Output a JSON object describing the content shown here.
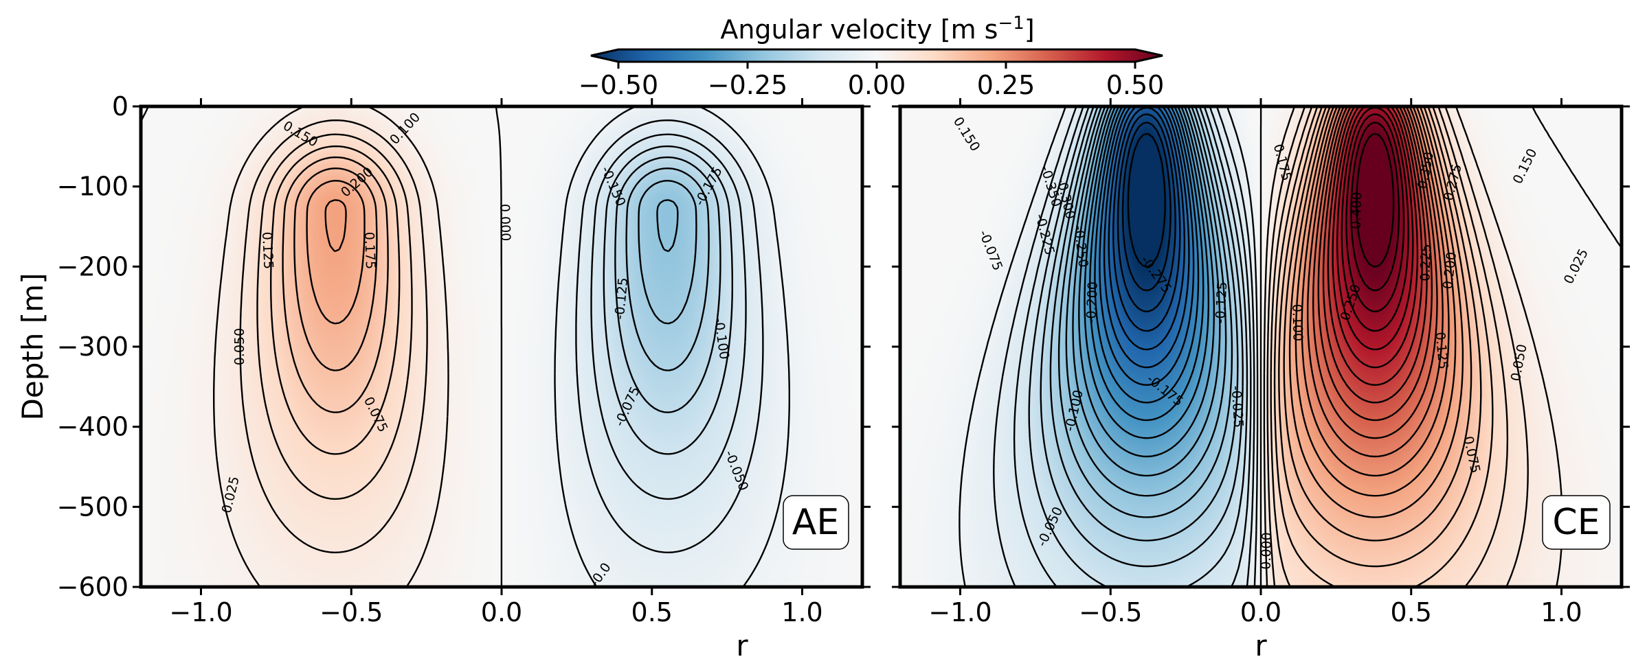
{
  "colorbar": {
    "label_main": "Angular velocity [m s",
    "label_sup": "−1",
    "label_end": "]",
    "vmin": -0.5,
    "vmax": 0.5,
    "ticks": [
      "−0.50",
      "−0.25",
      "0.00",
      "0.25",
      "0.50"
    ],
    "tick_values": [
      -0.5,
      -0.25,
      0,
      0.25,
      0.5
    ],
    "colormap": [
      "#053061",
      "#2166ac",
      "#4393c3",
      "#92c5de",
      "#d1e5f0",
      "#f7f7f7",
      "#fddbc7",
      "#f4a582",
      "#d6604d",
      "#b2182b",
      "#67001f"
    ]
  },
  "chart_data": [
    {
      "type": "heatmap",
      "panel": "AE",
      "tag": "AE",
      "xlabel": "r",
      "ylabel": "Depth [m]",
      "xlim": [
        -1.2,
        1.2
      ],
      "ylim": [
        -600,
        0
      ],
      "xticks": [
        "−1.0",
        "−0.5",
        "0.0",
        "0.5",
        "1.0"
      ],
      "xtick_values": [
        -1.0,
        -0.5,
        0.0,
        0.5,
        1.0
      ],
      "yticks": [
        "0",
        "−100",
        "−200",
        "−300",
        "−400",
        "−500",
        "−600"
      ],
      "ytick_values": [
        0,
        -100,
        -200,
        -300,
        -400,
        -500,
        -600
      ],
      "field": {
        "amplitude": 0.2,
        "center_r": 0.55,
        "center_depth": -130,
        "sign": "positive at r<0, negative at r>0"
      },
      "contour_labels": [
        {
          "text": "0.150",
          "r": -0.67,
          "depth": -35
        },
        {
          "text": "0.100",
          "r": -0.32,
          "depth": -28
        },
        {
          "text": "0.200",
          "r": -0.48,
          "depth": -95
        },
        {
          "text": "0.125",
          "r": -0.78,
          "depth": -180
        },
        {
          "text": "0.175",
          "r": -0.44,
          "depth": -180
        },
        {
          "text": "0.050",
          "r": -0.87,
          "depth": -300
        },
        {
          "text": "0.075",
          "r": -0.42,
          "depth": -385
        },
        {
          "text": "0.025",
          "r": -0.9,
          "depth": -485
        },
        {
          "text": "0.000",
          "r": 0.01,
          "depth": -145
        },
        {
          "text": "-0.150",
          "r": 0.37,
          "depth": -100
        },
        {
          "text": "-0.175",
          "r": 0.69,
          "depth": -100
        },
        {
          "text": "-0.125",
          "r": 0.4,
          "depth": -240
        },
        {
          "text": "-0.100",
          "r": 0.73,
          "depth": -290
        },
        {
          "text": "-0.075",
          "r": 0.42,
          "depth": -375
        },
        {
          "text": "-0.050",
          "r": 0.78,
          "depth": -455
        },
        {
          "text": "-0.0",
          "r": 0.33,
          "depth": -585
        }
      ]
    },
    {
      "type": "heatmap",
      "panel": "CE",
      "tag": "CE",
      "xlabel": "r",
      "ylabel": "",
      "xlim": [
        -1.2,
        1.2
      ],
      "ylim": [
        -600,
        0
      ],
      "xticks": [
        "−1.0",
        "−0.5",
        "0.0",
        "0.5",
        "1.0"
      ],
      "xtick_values": [
        -1.0,
        -0.5,
        0.0,
        0.5,
        1.0
      ],
      "yticks": [],
      "field": {
        "amplitude": 0.5,
        "center_r": 0.4,
        "center_depth": -60,
        "sign": "negative at r<0, positive at r>0"
      },
      "contour_labels": [
        {
          "text": "0.150",
          "r": -0.98,
          "depth": -35
        },
        {
          "text": "-0.350",
          "r": -0.7,
          "depth": -100
        },
        {
          "text": "-0.300",
          "r": -0.65,
          "depth": -115
        },
        {
          "text": "-0.225",
          "r": -0.72,
          "depth": -160
        },
        {
          "text": "-0.250",
          "r": -0.6,
          "depth": -175
        },
        {
          "text": "-0.075",
          "r": -0.9,
          "depth": -180
        },
        {
          "text": "-0.200",
          "r": -0.56,
          "depth": -245
        },
        {
          "text": "-0.275",
          "r": -0.35,
          "depth": -210
        },
        {
          "text": "-0.125",
          "r": -0.13,
          "depth": -245
        },
        {
          "text": "-0.175",
          "r": -0.32,
          "depth": -355
        },
        {
          "text": "-0.100",
          "r": -0.62,
          "depth": -380
        },
        {
          "text": "-0.025",
          "r": -0.08,
          "depth": -375
        },
        {
          "text": "-0.050",
          "r": -0.7,
          "depth": -525
        },
        {
          "text": "0.000",
          "r": 0.02,
          "depth": -555
        },
        {
          "text": "0.175",
          "r": 0.07,
          "depth": -70
        },
        {
          "text": "0.100",
          "r": 0.12,
          "depth": -270
        },
        {
          "text": "0.400",
          "r": 0.32,
          "depth": -130
        },
        {
          "text": "0.350",
          "r": 0.55,
          "depth": -80
        },
        {
          "text": "0.275",
          "r": 0.64,
          "depth": -95
        },
        {
          "text": "0.150",
          "r": 0.88,
          "depth": -75
        },
        {
          "text": "0.225",
          "r": 0.55,
          "depth": -195
        },
        {
          "text": "0.200",
          "r": 0.63,
          "depth": -205
        },
        {
          "text": "0.250",
          "r": 0.3,
          "depth": -245
        },
        {
          "text": "0.125",
          "r": 0.6,
          "depth": -305
        },
        {
          "text": "0.050",
          "r": 0.86,
          "depth": -320
        },
        {
          "text": "0.025",
          "r": 1.05,
          "depth": -200
        },
        {
          "text": "0.075",
          "r": 0.7,
          "depth": -435
        }
      ]
    }
  ]
}
